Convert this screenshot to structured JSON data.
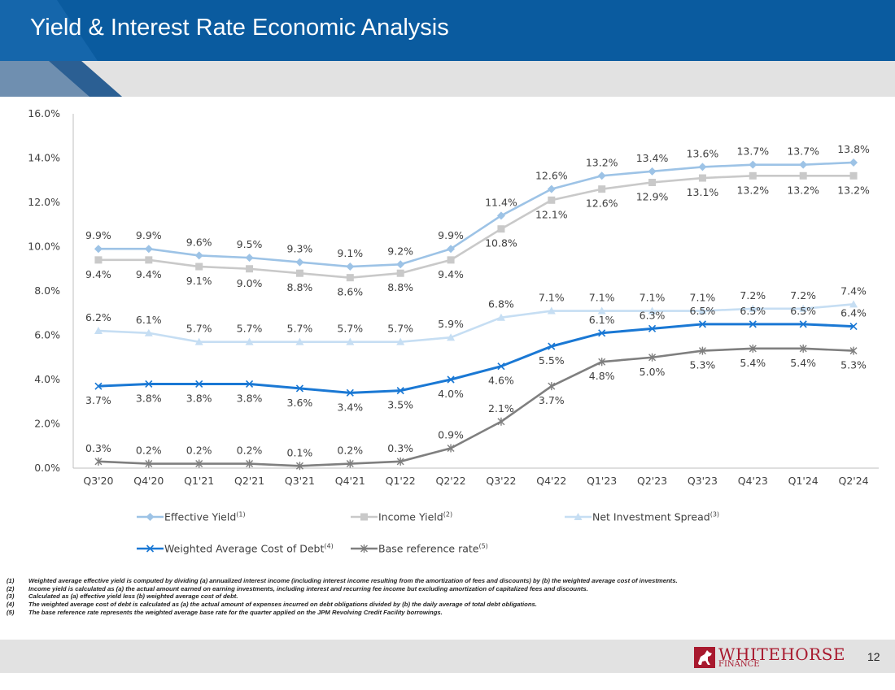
{
  "header": {
    "title": "Yield & Interest Rate Economic Analysis"
  },
  "chart_data": {
    "type": "line",
    "categories": [
      "Q3'20",
      "Q4'20",
      "Q1'21",
      "Q2'21",
      "Q3'21",
      "Q4'21",
      "Q1'22",
      "Q2'22",
      "Q3'22",
      "Q4'22",
      "Q1'23",
      "Q2'23",
      "Q3'23",
      "Q4'23",
      "Q1'24",
      "Q2'24"
    ],
    "ylim": [
      0,
      16
    ],
    "yticks": [
      "0.0%",
      "2.0%",
      "4.0%",
      "6.0%",
      "8.0%",
      "10.0%",
      "12.0%",
      "14.0%",
      "16.0%"
    ],
    "grid": false,
    "legend_position": "bottom",
    "series": [
      {
        "name": "Effective Yield",
        "sup": "(1)",
        "color": "#9dc3e6",
        "marker": "diamond",
        "label_pos": "above",
        "values": [
          9.9,
          9.9,
          9.6,
          9.5,
          9.3,
          9.1,
          9.2,
          9.9,
          11.4,
          12.6,
          13.2,
          13.4,
          13.6,
          13.7,
          13.7,
          13.8
        ],
        "labels": [
          "9.9%",
          "9.9%",
          "9.6%",
          "9.5%",
          "9.3%",
          "9.1%",
          "9.2%",
          "9.9%",
          "11.4%",
          "12.6%",
          "13.2%",
          "13.4%",
          "13.6%",
          "13.7%",
          "13.7%",
          "13.8%"
        ]
      },
      {
        "name": "Income Yield",
        "sup": "(2)",
        "color": "#c9c9c9",
        "marker": "square",
        "label_pos": "below",
        "values": [
          9.4,
          9.4,
          9.1,
          9.0,
          8.8,
          8.6,
          8.8,
          9.4,
          10.8,
          12.1,
          12.6,
          12.9,
          13.1,
          13.2,
          13.2,
          13.2
        ],
        "labels": [
          "9.4%",
          "9.4%",
          "9.1%",
          "9.0%",
          "8.8%",
          "8.6%",
          "8.8%",
          "9.4%",
          "10.8%",
          "12.1%",
          "12.6%",
          "12.9%",
          "13.1%",
          "13.2%",
          "13.2%",
          "13.2%"
        ]
      },
      {
        "name": "Net Investment Spread",
        "sup": "(3)",
        "color": "#c6def3",
        "marker": "triangle",
        "label_pos": "above",
        "values": [
          6.2,
          6.1,
          5.7,
          5.7,
          5.7,
          5.7,
          5.7,
          5.9,
          6.8,
          7.1,
          7.1,
          7.1,
          7.1,
          7.2,
          7.2,
          7.4
        ],
        "labels": [
          "6.2%",
          "6.1%",
          "5.7%",
          "5.7%",
          "5.7%",
          "5.7%",
          "5.7%",
          "5.9%",
          "6.8%",
          "7.1%",
          "7.1%",
          "7.1%",
          "7.1%",
          "7.2%",
          "7.2%",
          "7.4%"
        ]
      },
      {
        "name": "Weighted Average Cost of Debt",
        "sup": "(4)",
        "color": "#1a78d4",
        "marker": "x",
        "label_pos": "mixed",
        "values": [
          3.7,
          3.8,
          3.8,
          3.8,
          3.6,
          3.4,
          3.5,
          4.0,
          4.6,
          5.5,
          6.1,
          6.3,
          6.5,
          6.5,
          6.5,
          6.4
        ],
        "labels": [
          "3.7%",
          "3.8%",
          "3.8%",
          "3.8%",
          "3.6%",
          "3.4%",
          "3.5%",
          "4.0%",
          "4.6%",
          "5.5%",
          "6.1%",
          "6.3%",
          "6.5%",
          "6.5%",
          "6.5%",
          "6.4%"
        ]
      },
      {
        "name": "Base reference rate",
        "sup": "(5)",
        "color": "#7f7f7f",
        "marker": "star",
        "label_pos": "mixed",
        "values": [
          0.3,
          0.2,
          0.2,
          0.2,
          0.1,
          0.2,
          0.3,
          0.9,
          2.1,
          3.7,
          4.8,
          5.0,
          5.3,
          5.4,
          5.4,
          5.3
        ],
        "labels": [
          "0.3%",
          "0.2%",
          "0.2%",
          "0.2%",
          "0.1%",
          "0.2%",
          "0.3%",
          "0.9%",
          "2.1%",
          "3.7%",
          "4.8%",
          "5.0%",
          "5.3%",
          "5.4%",
          "5.4%",
          "5.3%"
        ]
      }
    ]
  },
  "footnotes": [
    {
      "num": "(1)",
      "text": "Weighted average effective yield is computed by dividing (a) annualized interest income (including interest income resulting from the amortization of fees and discounts) by (b) the weighted average cost of investments."
    },
    {
      "num": "(2)",
      "text": "Income yield is calculated as (a) the actual amount earned on earning investments, including interest and recurring fee income but excluding amortization of capitalized fees and discounts."
    },
    {
      "num": "(3)",
      "text": "Calculated as (a) effective yield less (b) weighted average cost of debt."
    },
    {
      "num": "(4)",
      "text": "The weighted average cost of debt is calculated as (a) the actual amount of expenses incurred on debt obligations divided by (b) the daily average of total debt obligations."
    },
    {
      "num": "(5)",
      "text": "The base reference rate represents the weighted average base rate for the quarter applied on the JPM Revolving Credit Facility borrowings."
    }
  ],
  "footer": {
    "logo_text": "WHITEHORSE",
    "logo_sub": "FINANCE",
    "page_number": "12",
    "logo_color": "#a8192e"
  }
}
